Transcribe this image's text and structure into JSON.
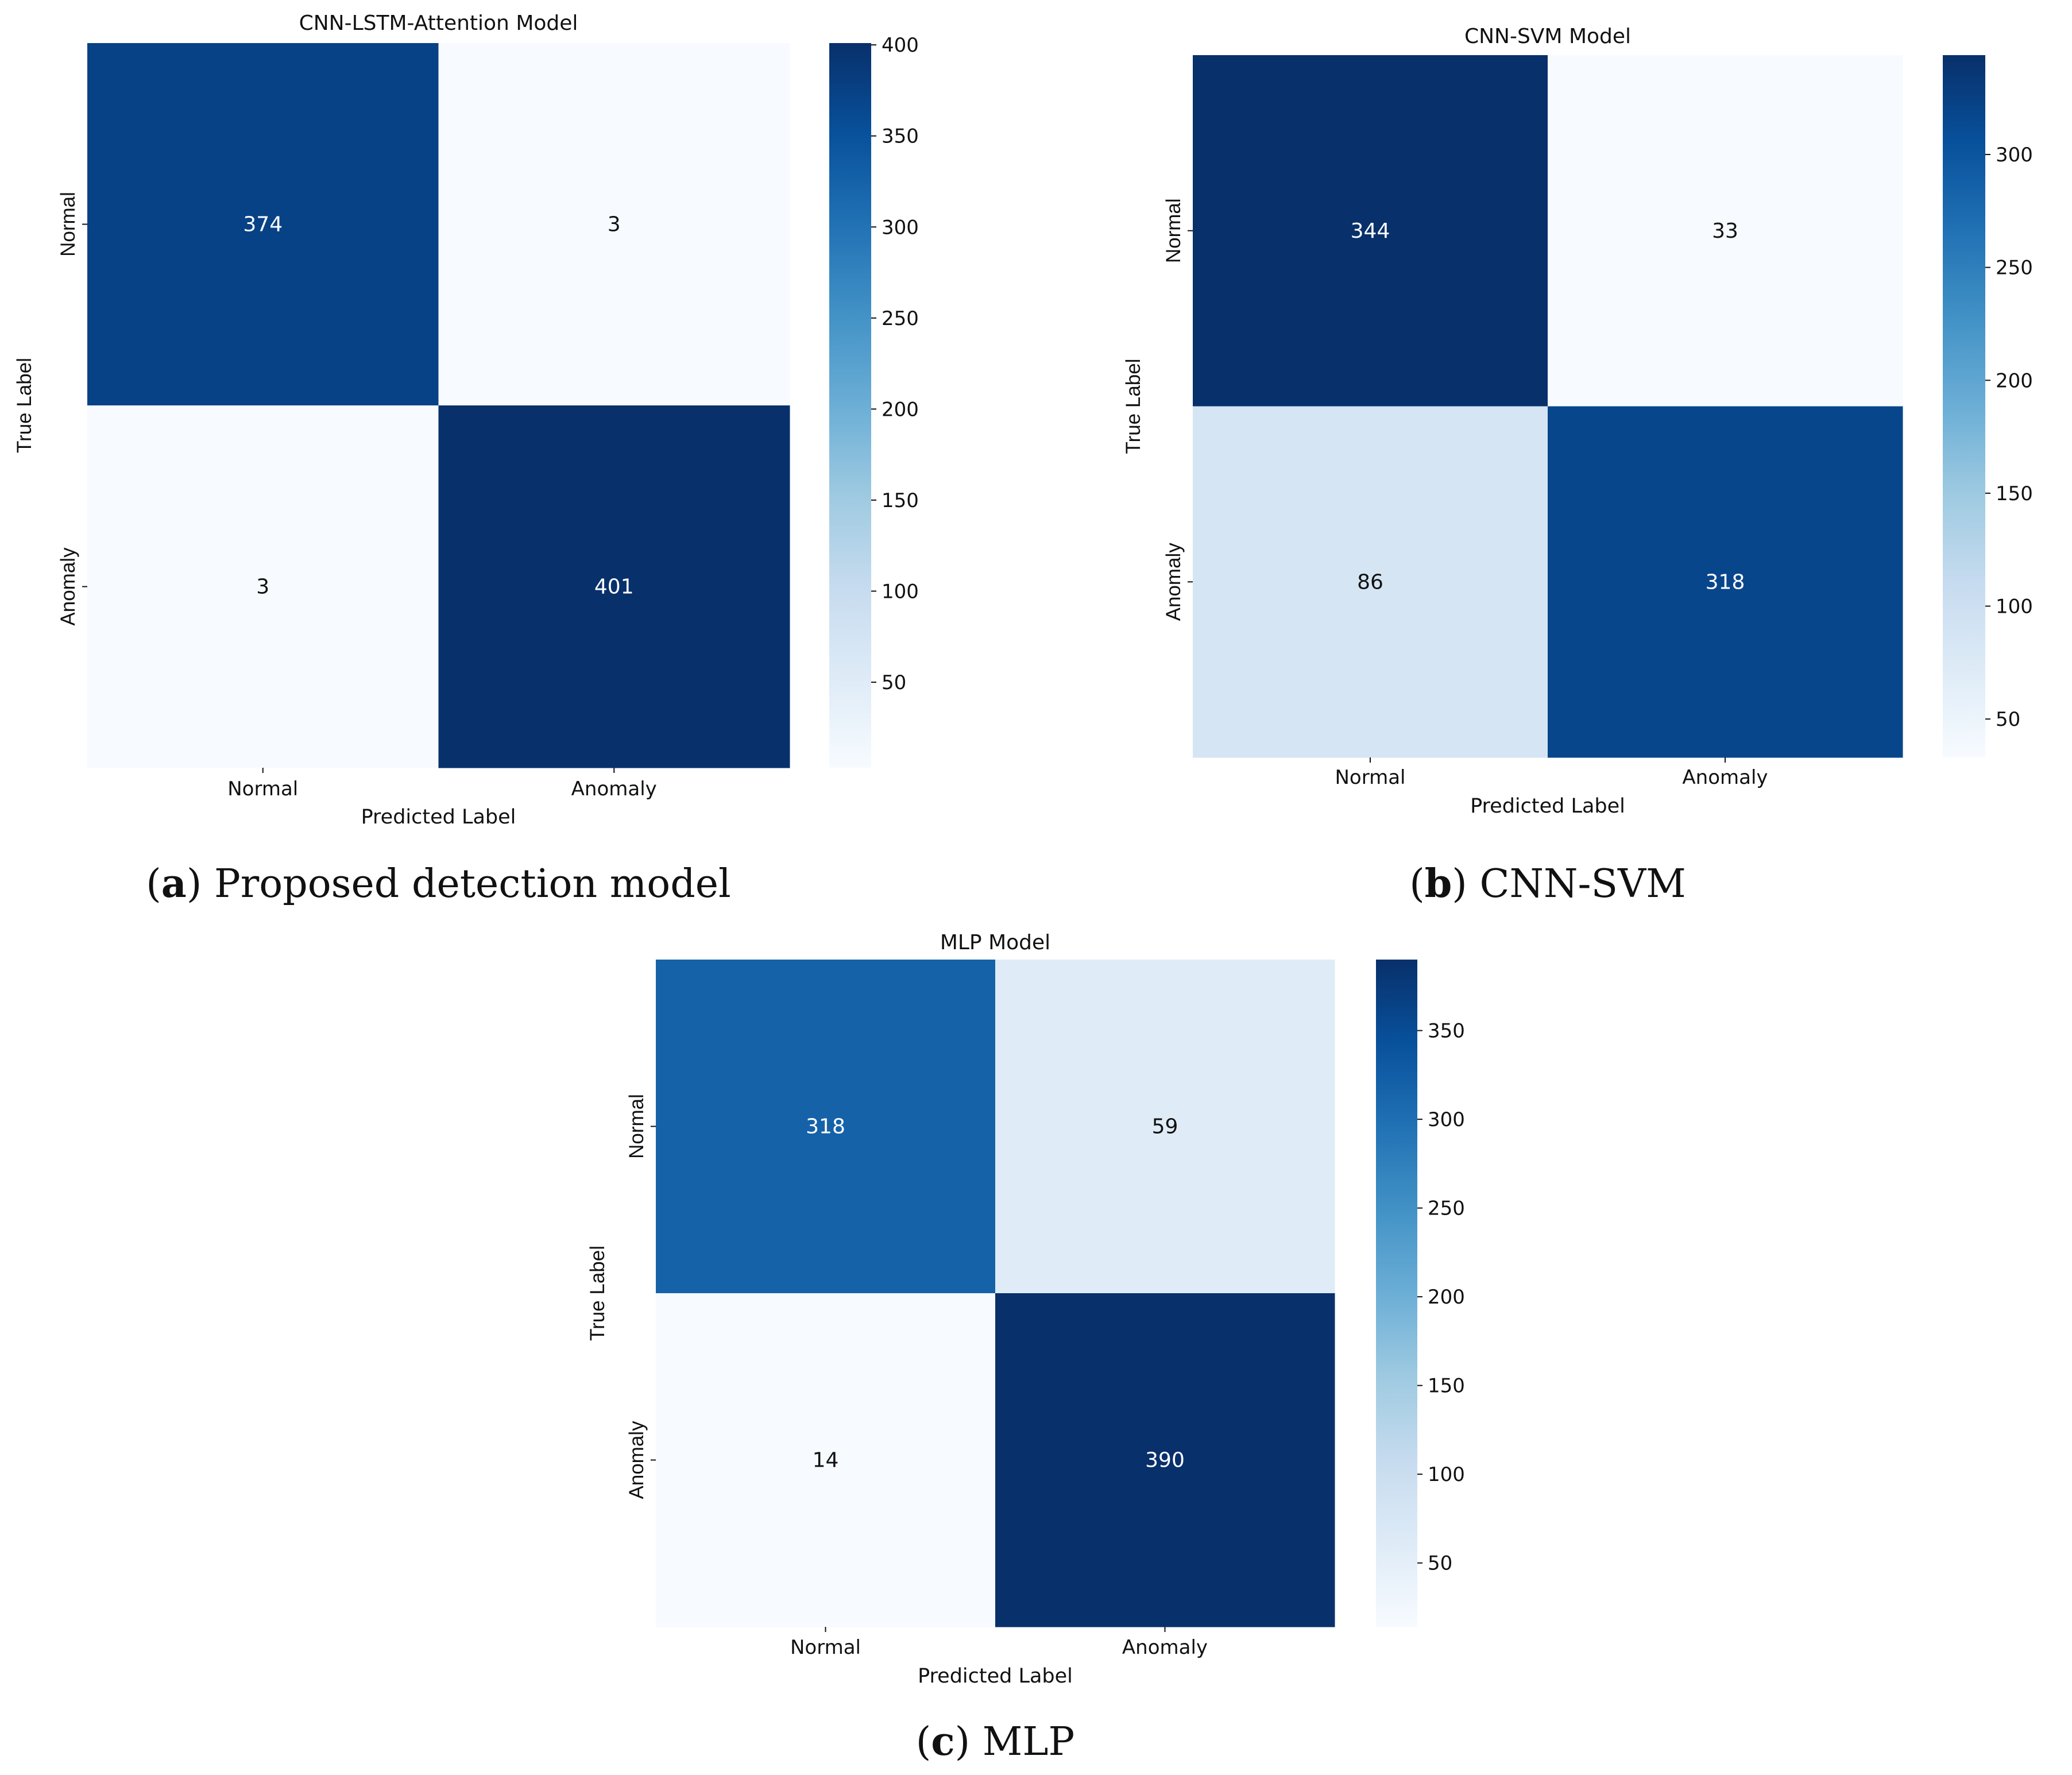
{
  "chart_data": [
    {
      "type": "heatmap",
      "id": "a",
      "title": "CNN-LSTM-Attention Model",
      "xlabel": "Predicted Label",
      "ylabel": "True Label",
      "x_categories": [
        "Normal",
        "Anomaly"
      ],
      "y_categories": [
        "Normal",
        "Anomaly"
      ],
      "matrix": [
        [
          374,
          3
        ],
        [
          3,
          401
        ]
      ],
      "colorbar_range": [
        3,
        401
      ],
      "colorbar_ticks": [
        50,
        100,
        150,
        200,
        250,
        300,
        350,
        400
      ],
      "colormap": "Blues",
      "caption_letter": "a",
      "caption_text": "Proposed detection model"
    },
    {
      "type": "heatmap",
      "id": "b",
      "title": "CNN-SVM Model",
      "xlabel": "Predicted Label",
      "ylabel": "True Label",
      "x_categories": [
        "Normal",
        "Anomaly"
      ],
      "y_categories": [
        "Normal",
        "Anomaly"
      ],
      "matrix": [
        [
          344,
          33
        ],
        [
          86,
          318
        ]
      ],
      "colorbar_range": [
        33,
        344
      ],
      "colorbar_ticks": [
        50,
        100,
        150,
        200,
        250,
        300
      ],
      "colormap": "Blues",
      "caption_letter": "b",
      "caption_text": "CNN-SVM"
    },
    {
      "type": "heatmap",
      "id": "c",
      "title": "MLP Model",
      "xlabel": "Predicted Label",
      "ylabel": "True Label",
      "x_categories": [
        "Normal",
        "Anomaly"
      ],
      "y_categories": [
        "Normal",
        "Anomaly"
      ],
      "matrix": [
        [
          318,
          59
        ],
        [
          14,
          390
        ]
      ],
      "colorbar_range": [
        14,
        390
      ],
      "colorbar_ticks": [
        50,
        100,
        150,
        200,
        250,
        300,
        350
      ],
      "colormap": "Blues",
      "caption_letter": "c",
      "caption_text": "MLP"
    }
  ]
}
